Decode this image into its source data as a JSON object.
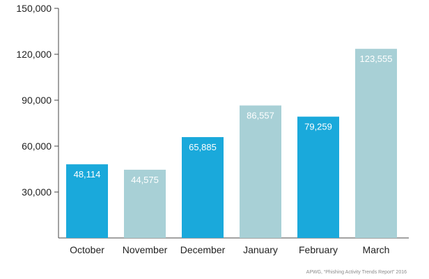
{
  "chart_data": {
    "type": "bar",
    "categories": [
      "October",
      "November",
      "December",
      "January",
      "February",
      "March"
    ],
    "values": [
      48114,
      44575,
      65885,
      86557,
      79259,
      123555
    ],
    "value_labels": [
      "48,114",
      "44,575",
      "65,885",
      "86,557",
      "79,259",
      "123,555"
    ],
    "bar_colors": [
      "#1aa9db",
      "#a8d0d6",
      "#1aa9db",
      "#a8d0d6",
      "#1aa9db",
      "#a8d0d6"
    ],
    "ylim": [
      0,
      150000
    ],
    "yticks": [
      30000,
      60000,
      90000,
      120000,
      150000
    ],
    "ytick_labels": [
      "30,000",
      "60,000",
      "90,000",
      "120,000",
      "150,000"
    ],
    "grid": false,
    "title": "",
    "xlabel": "",
    "ylabel": ""
  },
  "source_note": "APWG, “Phishing Activity Trends Report” 2016",
  "colors": {
    "axis": "#444444",
    "text": "#222222"
  }
}
